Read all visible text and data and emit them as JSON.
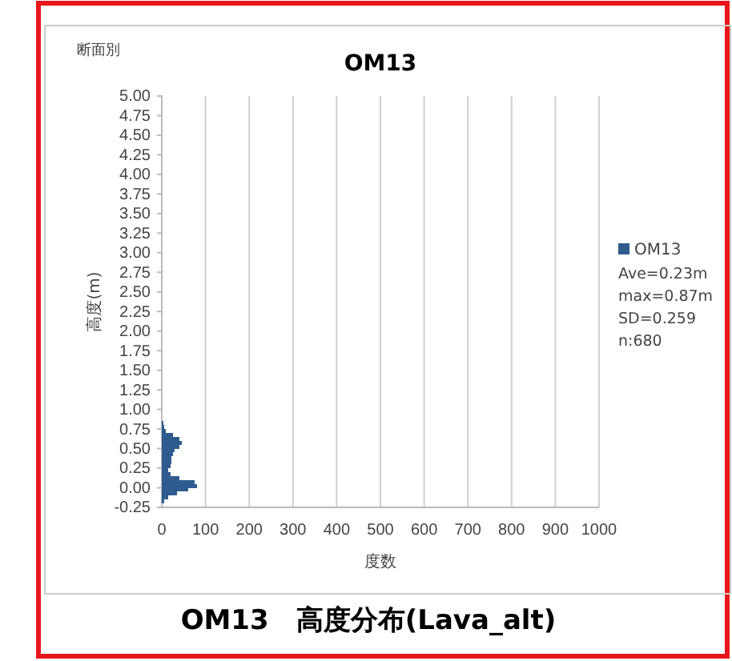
{
  "chart_data": {
    "type": "histogram",
    "orientation": "horizontal",
    "title": "OM13",
    "xlabel": "度数",
    "ylabel": "高度(m)",
    "annotations": [
      "断面別",
      "Ave=0.23m",
      "max=0.87m",
      "SD=0.259",
      "n:680",
      "OM13　高度分布(Lava_alt)"
    ],
    "bins": [
      0.85,
      0.8,
      0.75,
      0.7,
      0.65,
      0.6,
      0.55,
      0.5,
      0.45,
      0.4,
      0.35,
      0.3,
      0.25,
      0.2,
      0.15,
      0.1,
      0.05,
      0,
      -0.05,
      -0.1,
      -0.15,
      -0.2
    ],
    "series": [
      {
        "name": "OM13",
        "color": "#2f5b8f",
        "values": [
          4,
          6,
          10,
          25,
          40,
          45,
          40,
          30,
          25,
          22,
          22,
          20,
          15,
          20,
          40,
          75,
          80,
          60,
          35,
          15,
          5
        ]
      }
    ],
    "xlim": [
      0,
      1000
    ],
    "xticks": [
      0,
      100,
      200,
      300,
      400,
      500,
      600,
      700,
      800,
      900,
      1000
    ],
    "ylim": [
      -0.25,
      5
    ],
    "yticks": [
      {
        "value": -0.25,
        "label": "-0.25"
      },
      {
        "value": 0,
        "label": "0.00"
      },
      {
        "value": 0.25,
        "label": "0.25"
      },
      {
        "value": 0.5,
        "label": "0.50"
      },
      {
        "value": 0.75,
        "label": "0.75"
      },
      {
        "value": 1,
        "label": "1.00"
      },
      {
        "value": 1.25,
        "label": "1.25"
      },
      {
        "value": 1.5,
        "label": "1.50"
      },
      {
        "value": 1.75,
        "label": "1.75"
      },
      {
        "value": 2,
        "label": "2.00"
      },
      {
        "value": 2.25,
        "label": "2.25"
      },
      {
        "value": 2.5,
        "label": "2.50"
      },
      {
        "value": 2.75,
        "label": "2.75"
      },
      {
        "value": 3,
        "label": "3.00"
      },
      {
        "value": 3.25,
        "label": "3.25"
      },
      {
        "value": 3.5,
        "label": "3.50"
      },
      {
        "value": 3.75,
        "label": "3.75"
      },
      {
        "value": 4,
        "label": "4.00"
      },
      {
        "value": 4.25,
        "label": "4.25"
      },
      {
        "value": 4.5,
        "label": "4.50"
      },
      {
        "value": 4.75,
        "label": "4.75"
      },
      {
        "value": 5,
        "label": "5.00"
      }
    ],
    "grid": "x",
    "legend": "right"
  }
}
